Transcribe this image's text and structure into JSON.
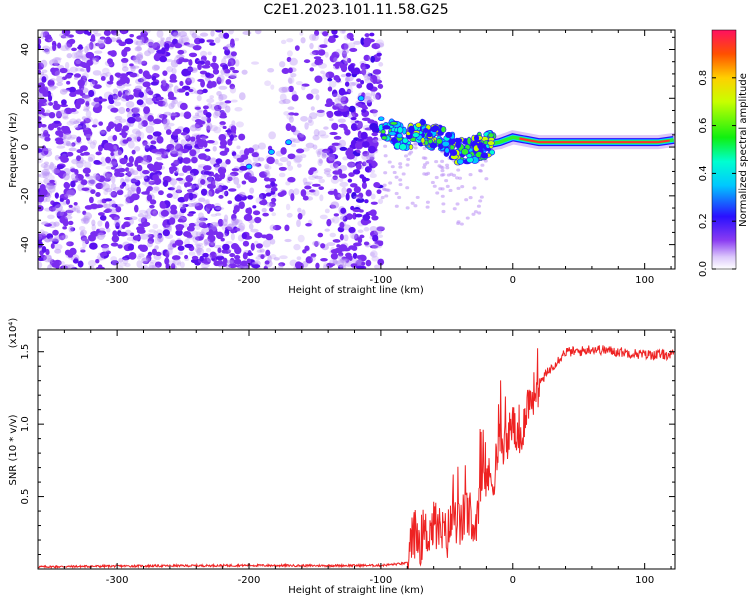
{
  "title": "C2E1.2023.101.11.58.G25",
  "chart_data": [
    {
      "type": "heatmap",
      "name": "spectrogram",
      "title": "C2E1.2023.101.11.58.G25",
      "xlabel": "Height of straight line (km)",
      "ylabel": "Frequency (Hz)",
      "xlim": [
        -360,
        123
      ],
      "ylim": [
        -50,
        48
      ],
      "x_ticks": [
        -300,
        -200,
        -100,
        0,
        100
      ],
      "x_tick_labels": [
        "-300",
        "-200",
        "-100",
        "0",
        "100"
      ],
      "y_ticks": [
        -40,
        -20,
        0,
        20,
        40
      ],
      "y_tick_labels": [
        "-40",
        "-20",
        "0",
        "20",
        "40"
      ],
      "description_points": {
        "noise_region_x": [
          -360,
          -100
        ],
        "signal_track": {
          "x": [
            -100,
            -90,
            -80,
            -70,
            -60,
            -50,
            -40,
            -30,
            -20,
            -10,
            0,
            20,
            50,
            80,
            110,
            123
          ],
          "y": [
            8,
            5,
            3,
            6,
            4,
            2,
            -2,
            -1,
            1,
            2,
            4,
            2,
            2,
            2,
            2,
            3
          ]
        }
      },
      "colorbar": {
        "label": "Normalized spectral amplitude",
        "range": [
          0,
          1
        ],
        "ticks": [
          0.0,
          0.2,
          0.4,
          0.6,
          0.8
        ],
        "tick_labels": [
          "0.0",
          "0.2",
          "0.4",
          "0.6",
          "0.8"
        ]
      }
    },
    {
      "type": "line",
      "name": "snr",
      "xlabel": "Height of straight line (km)",
      "ylabel": "SNR (10 * v/v)",
      "y_multiplier": "(x10⁴)",
      "xlim": [
        -360,
        123
      ],
      "ylim": [
        0,
        16500
      ],
      "x_ticks": [
        -300,
        -200,
        -100,
        0,
        100
      ],
      "x_tick_labels": [
        "-300",
        "-200",
        "-100",
        "0",
        "100"
      ],
      "y_ticks": [
        5000,
        10000,
        15000
      ],
      "y_tick_labels": [
        "0.5",
        "1.0",
        "1.5"
      ],
      "series": [
        {
          "name": "SNR",
          "color": "#ee2222",
          "x": [
            -360,
            -300,
            -200,
            -150,
            -100,
            -80,
            -75,
            -70,
            -60,
            -50,
            -45,
            -40,
            -35,
            -30,
            -25,
            -20,
            -15,
            -10,
            -5,
            0,
            5,
            10,
            20,
            30,
            40,
            50,
            60,
            80,
            100,
            123
          ],
          "y": [
            150,
            200,
            250,
            230,
            250,
            400,
            2500,
            2000,
            3000,
            2200,
            3800,
            2800,
            4200,
            2000,
            5500,
            6500,
            6000,
            8800,
            8600,
            10200,
            8000,
            11200,
            12800,
            14000,
            15000,
            15000,
            15200,
            15000,
            14800,
            14800
          ]
        }
      ]
    }
  ]
}
